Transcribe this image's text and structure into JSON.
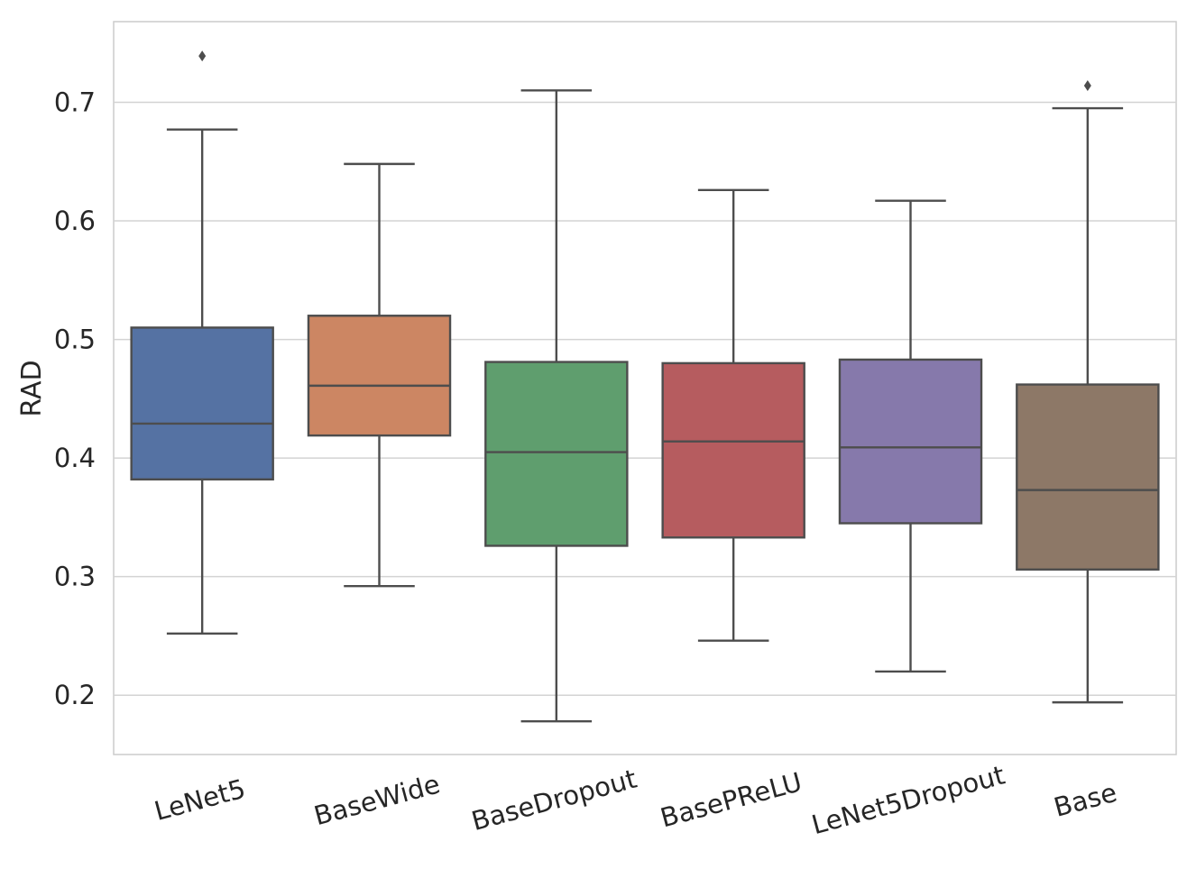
{
  "chart_data": {
    "type": "box",
    "title": "",
    "xlabel": "",
    "ylabel": "RAD",
    "ylim": [
      0.15,
      0.768
    ],
    "yticks": [
      "0.2",
      "0.3",
      "0.4",
      "0.5",
      "0.6",
      "0.7"
    ],
    "grid": true,
    "categories": [
      "LeNet5",
      "BaseWide",
      "BaseDropout",
      "BasePReLU",
      "LeNet5Dropout",
      "Base"
    ],
    "colors": [
      "#5572a3",
      "#cc8663",
      "#5f9e6e",
      "#b65c5f",
      "#8679ab",
      "#8d7867"
    ],
    "edge_color": "#4d4d4d",
    "series": [
      {
        "name": "LeNet5",
        "whisker_low": 0.252,
        "q1": 0.382,
        "median": 0.429,
        "q3": 0.51,
        "whisker_high": 0.677,
        "outliers": [
          0.739
        ]
      },
      {
        "name": "BaseWide",
        "whisker_low": 0.292,
        "q1": 0.419,
        "median": 0.461,
        "q3": 0.52,
        "whisker_high": 0.648,
        "outliers": []
      },
      {
        "name": "BaseDropout",
        "whisker_low": 0.178,
        "q1": 0.326,
        "median": 0.405,
        "q3": 0.481,
        "whisker_high": 0.71,
        "outliers": []
      },
      {
        "name": "BasePReLU",
        "whisker_low": 0.246,
        "q1": 0.333,
        "median": 0.414,
        "q3": 0.48,
        "whisker_high": 0.626,
        "outliers": []
      },
      {
        "name": "LeNet5Dropout",
        "whisker_low": 0.22,
        "q1": 0.345,
        "median": 0.409,
        "q3": 0.483,
        "whisker_high": 0.617,
        "outliers": []
      },
      {
        "name": "Base",
        "whisker_low": 0.194,
        "q1": 0.306,
        "median": 0.373,
        "q3": 0.462,
        "whisker_high": 0.695,
        "outliers": [
          0.714
        ]
      }
    ]
  }
}
